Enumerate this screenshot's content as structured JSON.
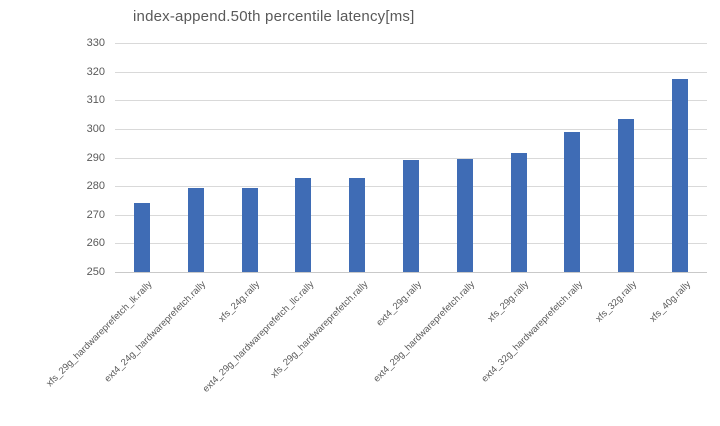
{
  "chart_data": {
    "type": "bar",
    "title": "index-append.50th percentile latency[ms]",
    "categories": [
      "xfs_29g_hardwareprefetch_lk.rally",
      "ext4_24g_hardwareprefetch.rally",
      "xfs_24g.rally",
      "ext4_29g_hardwareprefetch_llc.rally",
      "xfs_29g_hardwareprefetch.rally",
      "ext4_29g.rally",
      "ext4_29g_hardwareprefetch.rally",
      "xfs_29g.rally",
      "ext4_32g_hardwareprefetch.rally",
      "xfs_32g.rally",
      "xfs_40g.rally"
    ],
    "values": [
      274,
      279.5,
      279.5,
      283,
      283,
      289,
      289.5,
      291.5,
      299,
      303.5,
      317.5
    ],
    "xlabel": "",
    "ylabel": "",
    "ylim": [
      250,
      330
    ],
    "ytick_step": 10,
    "yticks": [
      250,
      260,
      270,
      280,
      290,
      300,
      310,
      320,
      330
    ],
    "grid": true,
    "legend": "none",
    "bar_color": "#3f6cb5",
    "gridline_color": "#d9d9d9",
    "text_color": "#595959"
  }
}
